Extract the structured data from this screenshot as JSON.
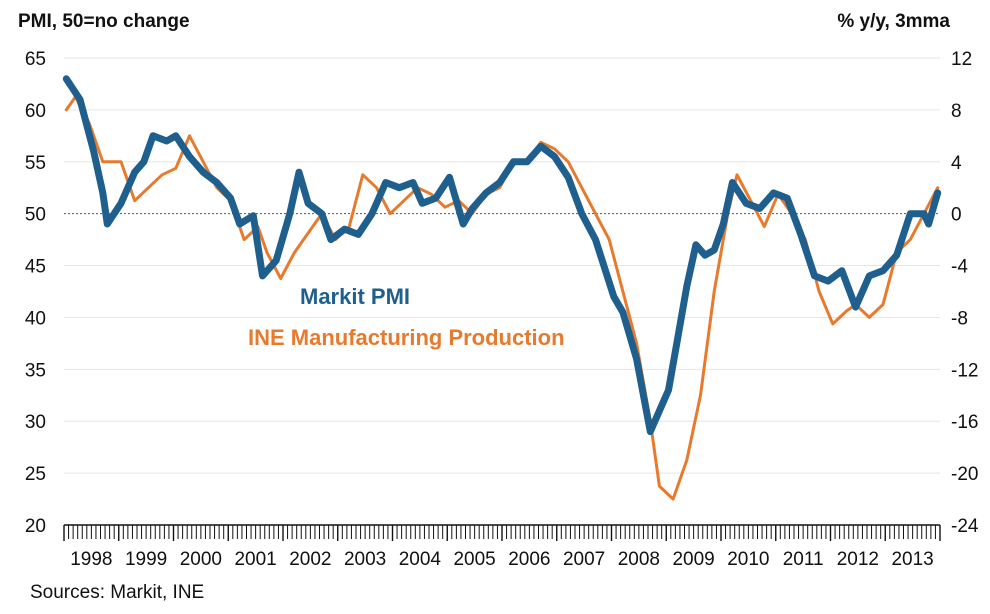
{
  "chart_data": {
    "type": "line",
    "ylabel_left": "PMI, 50=no change",
    "ylabel_right": "% y/y, 3mma",
    "source": "Sources: Markit, INE",
    "ylim_left": [
      20,
      65
    ],
    "ylim_right": [
      -24,
      12
    ],
    "yticks_left": [
      "65",
      "60",
      "55",
      "50",
      "45",
      "40",
      "35",
      "30",
      "25",
      "20"
    ],
    "yticks_right": [
      "12",
      "8",
      "4",
      "0",
      "-4",
      "-8",
      "-12",
      "-16",
      "-20",
      "-24"
    ],
    "x_start": "1998-01",
    "x_end": "2013-12",
    "year_labels": [
      "1998",
      "1999",
      "2000",
      "2001",
      "2002",
      "2003",
      "2004",
      "2005",
      "2006",
      "2007",
      "2008",
      "2009",
      "2010",
      "2011",
      "2012",
      "2013"
    ],
    "reference_line": 50,
    "series": [
      {
        "name": "Markit PMI",
        "axis": "left",
        "color": "#1f5f8e",
        "points": [
          [
            "1998-01",
            63
          ],
          [
            "1998-04",
            61
          ],
          [
            "1998-07",
            56
          ],
          [
            "1998-09",
            52
          ],
          [
            "1998-10",
            49
          ],
          [
            "1999-01",
            51
          ],
          [
            "1999-04",
            54
          ],
          [
            "1999-06",
            55
          ],
          [
            "1999-08",
            57.5
          ],
          [
            "1999-11",
            57
          ],
          [
            "2000-01",
            57.5
          ],
          [
            "2000-04",
            55.5
          ],
          [
            "2000-07",
            54
          ],
          [
            "2000-10",
            53
          ],
          [
            "2001-01",
            51.5
          ],
          [
            "2001-03",
            49
          ],
          [
            "2001-06",
            49.8
          ],
          [
            "2001-08",
            44
          ],
          [
            "2001-11",
            45.5
          ],
          [
            "2002-02",
            50
          ],
          [
            "2002-04",
            54
          ],
          [
            "2002-06",
            51
          ],
          [
            "2002-09",
            50
          ],
          [
            "2002-11",
            47.5
          ],
          [
            "2003-02",
            48.5
          ],
          [
            "2003-05",
            48
          ],
          [
            "2003-08",
            50
          ],
          [
            "2003-11",
            53
          ],
          [
            "2004-02",
            52.5
          ],
          [
            "2004-05",
            53
          ],
          [
            "2004-07",
            51
          ],
          [
            "2004-10",
            51.5
          ],
          [
            "2005-01",
            53.5
          ],
          [
            "2005-04",
            49
          ],
          [
            "2005-06",
            50.5
          ],
          [
            "2005-09",
            52
          ],
          [
            "2005-12",
            53
          ],
          [
            "2006-03",
            55
          ],
          [
            "2006-06",
            55
          ],
          [
            "2006-09",
            56.5
          ],
          [
            "2006-12",
            55.5
          ],
          [
            "2007-03",
            53.5
          ],
          [
            "2007-06",
            50
          ],
          [
            "2007-09",
            47.5
          ],
          [
            "2008-01",
            42
          ],
          [
            "2008-03",
            40.5
          ],
          [
            "2008-06",
            36
          ],
          [
            "2008-09",
            29
          ],
          [
            "2008-11",
            31
          ],
          [
            "2009-01",
            33
          ],
          [
            "2009-03",
            38
          ],
          [
            "2009-05",
            43
          ],
          [
            "2009-07",
            47
          ],
          [
            "2009-09",
            46
          ],
          [
            "2009-11",
            46.5
          ],
          [
            "2010-01",
            49
          ],
          [
            "2010-03",
            53
          ],
          [
            "2010-06",
            51
          ],
          [
            "2010-09",
            50.5
          ],
          [
            "2010-12",
            52
          ],
          [
            "2011-03",
            51.5
          ],
          [
            "2011-06",
            48
          ],
          [
            "2011-09",
            44
          ],
          [
            "2011-12",
            43.5
          ],
          [
            "2012-03",
            44.5
          ],
          [
            "2012-06",
            41
          ],
          [
            "2012-09",
            44
          ],
          [
            "2012-12",
            44.5
          ],
          [
            "2013-03",
            46
          ],
          [
            "2013-06",
            50
          ],
          [
            "2013-09",
            50
          ],
          [
            "2013-10",
            49
          ],
          [
            "2013-12",
            52
          ]
        ]
      },
      {
        "name": "INE Manufacturing Production",
        "axis": "right",
        "color": "#e87a2e",
        "points": [
          [
            "1998-01",
            8
          ],
          [
            "1998-03",
            9
          ],
          [
            "1998-06",
            7
          ],
          [
            "1998-09",
            4
          ],
          [
            "1999-01",
            4
          ],
          [
            "1999-04",
            1
          ],
          [
            "1999-07",
            2
          ],
          [
            "1999-10",
            3
          ],
          [
            "2000-01",
            3.5
          ],
          [
            "2000-04",
            6
          ],
          [
            "2000-07",
            4
          ],
          [
            "2000-10",
            2
          ],
          [
            "2001-01",
            1
          ],
          [
            "2001-04",
            -2
          ],
          [
            "2001-07",
            -1
          ],
          [
            "2001-09",
            -3
          ],
          [
            "2001-12",
            -5
          ],
          [
            "2002-03",
            -3
          ],
          [
            "2002-06",
            -1.5
          ],
          [
            "2002-09",
            0
          ],
          [
            "2002-12",
            -2
          ],
          [
            "2003-03",
            -1
          ],
          [
            "2003-06",
            3
          ],
          [
            "2003-09",
            2
          ],
          [
            "2003-12",
            0
          ],
          [
            "2004-03",
            1
          ],
          [
            "2004-06",
            2
          ],
          [
            "2004-09",
            1.5
          ],
          [
            "2004-12",
            0.5
          ],
          [
            "2005-03",
            1
          ],
          [
            "2005-06",
            0
          ],
          [
            "2005-09",
            1.5
          ],
          [
            "2005-12",
            2
          ],
          [
            "2006-03",
            4
          ],
          [
            "2006-06",
            4
          ],
          [
            "2006-09",
            5.5
          ],
          [
            "2006-12",
            5
          ],
          [
            "2007-03",
            4
          ],
          [
            "2007-06",
            2
          ],
          [
            "2007-09",
            0
          ],
          [
            "2007-12",
            -2
          ],
          [
            "2008-03",
            -6
          ],
          [
            "2008-06",
            -10
          ],
          [
            "2008-09",
            -16
          ],
          [
            "2008-11",
            -21
          ],
          [
            "2009-02",
            -22
          ],
          [
            "2009-05",
            -19
          ],
          [
            "2009-08",
            -14
          ],
          [
            "2009-11",
            -6
          ],
          [
            "2010-02",
            0
          ],
          [
            "2010-04",
            3
          ],
          [
            "2010-07",
            1
          ],
          [
            "2010-10",
            -1
          ],
          [
            "2011-01",
            1.5
          ],
          [
            "2011-04",
            0
          ],
          [
            "2011-07",
            -2
          ],
          [
            "2011-10",
            -6
          ],
          [
            "2012-01",
            -8.5
          ],
          [
            "2012-04",
            -7.5
          ],
          [
            "2012-06",
            -7
          ],
          [
            "2012-09",
            -8
          ],
          [
            "2012-12",
            -7
          ],
          [
            "2013-03",
            -3
          ],
          [
            "2013-06",
            -2
          ],
          [
            "2013-09",
            0
          ],
          [
            "2013-12",
            2
          ]
        ]
      }
    ]
  }
}
